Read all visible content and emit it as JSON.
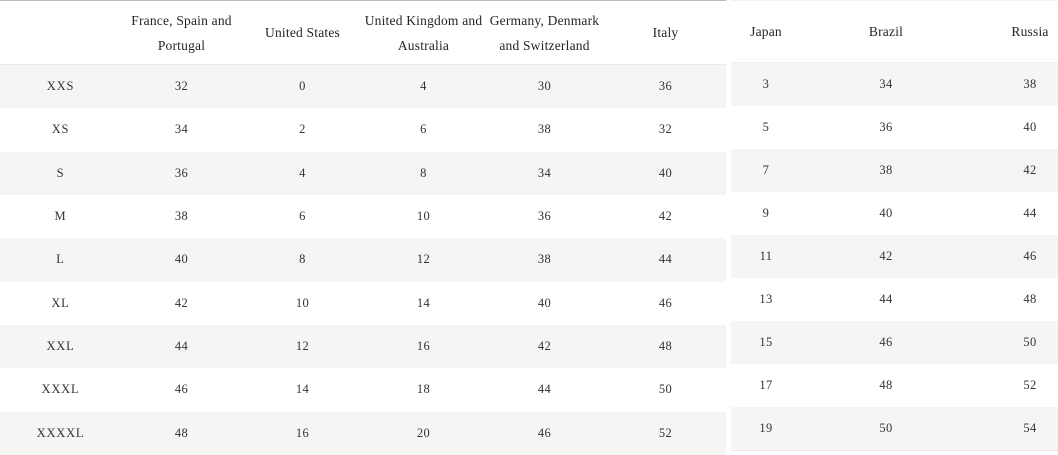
{
  "colors": {
    "stripe": "#f5f5f4",
    "divider": "#e9e9e9",
    "top_border": "#b9b9b9",
    "header_text": "#252525",
    "cell_text": "#333333",
    "background": "#ffffff"
  },
  "chart_data": {
    "type": "table",
    "title": "",
    "layout": {
      "split_after_column": 6,
      "left_table_columns": 6,
      "right_table_columns": 3,
      "striped_rows": "odd",
      "grid": "none",
      "legend": "none"
    },
    "columns": [
      "",
      "France, Spain and Portugal",
      "United States",
      "United Kingdom and Australia",
      "Germany, Denmark and Switzerland",
      "Italy",
      "Japan",
      "Brazil",
      "Russia"
    ],
    "rows": [
      [
        "XXS",
        "32",
        "0",
        "4",
        "30",
        "36",
        "3",
        "34",
        "38"
      ],
      [
        "XS",
        "34",
        "2",
        "6",
        "38",
        "32",
        "5",
        "36",
        "40"
      ],
      [
        "S",
        "36",
        "4",
        "8",
        "34",
        "40",
        "7",
        "38",
        "42"
      ],
      [
        "M",
        "38",
        "6",
        "10",
        "36",
        "42",
        "9",
        "40",
        "44"
      ],
      [
        "L",
        "40",
        "8",
        "12",
        "38",
        "44",
        "11",
        "42",
        "46"
      ],
      [
        "XL",
        "42",
        "10",
        "14",
        "40",
        "46",
        "13",
        "44",
        "48"
      ],
      [
        "XXL",
        "44",
        "12",
        "16",
        "42",
        "48",
        "15",
        "46",
        "50"
      ],
      [
        "XXXL",
        "46",
        "14",
        "18",
        "44",
        "50",
        "17",
        "48",
        "52"
      ],
      [
        "XXXXL",
        "48",
        "16",
        "20",
        "46",
        "52",
        "19",
        "50",
        "54"
      ]
    ]
  }
}
